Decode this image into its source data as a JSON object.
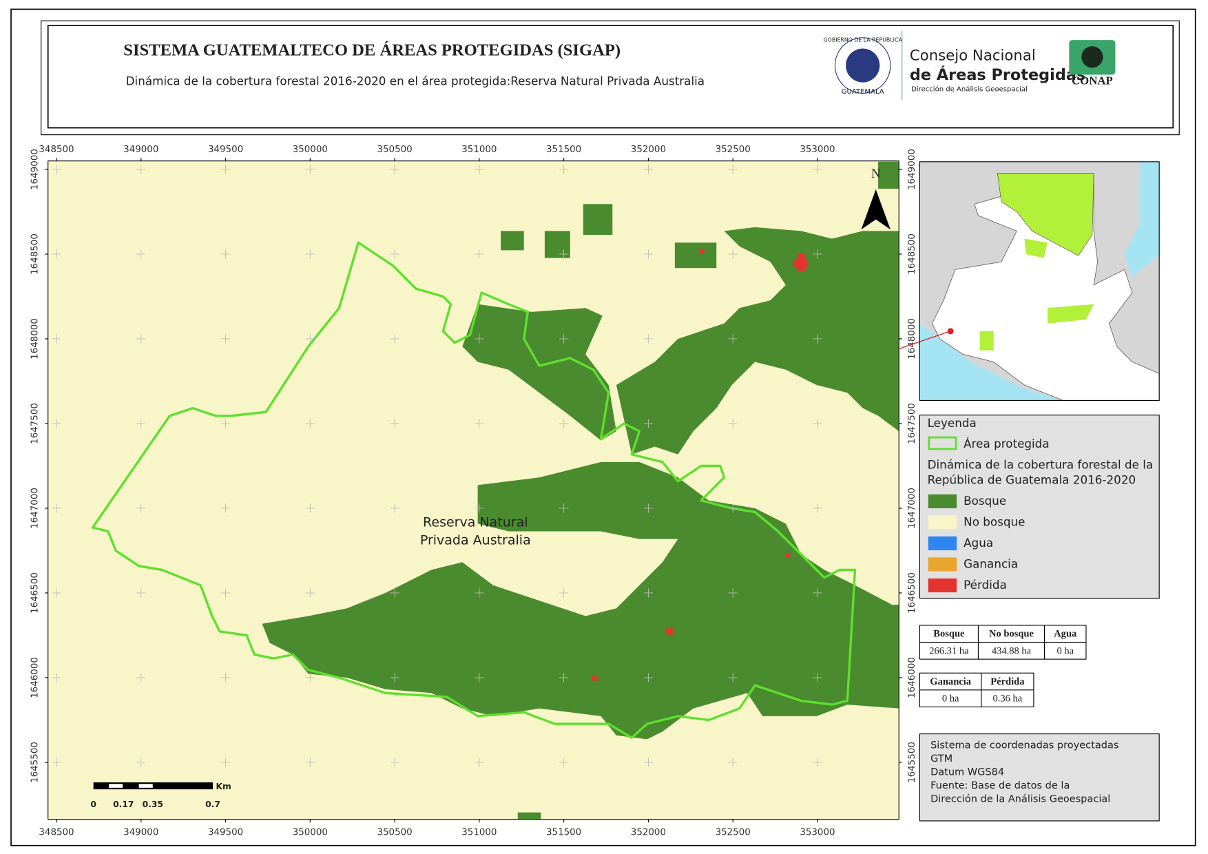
{
  "header": {
    "title": "SISTEMA GUATEMALTECO DE ÁREAS PROTEGIDAS  (SIGAP)",
    "subtitle": "Dinámica de la cobertura forestal 2016-2020 en el área protegida:Reserva Natural Privada Australia"
  },
  "logos": {
    "emblem_top": "GOBIERNO DE LA REPÚBLICA",
    "emblem_bottom": "GUATEMALA",
    "org_line1": "Consejo Nacional",
    "org_line2": "de Áreas Protegidas",
    "org_line3": "Dirección de Análisis Geoespacial",
    "conap": "CONAP"
  },
  "map": {
    "xticks": [
      348500,
      349000,
      349500,
      350000,
      350500,
      351000,
      351500,
      352000,
      352500,
      353000
    ],
    "yticks": [
      1649000,
      1648500,
      1648000,
      1647500,
      1647000,
      1646500,
      1646000,
      1645500
    ],
    "north": "N",
    "place_label": [
      "Reserva Natural",
      "Privada Australia"
    ],
    "scale_bar": {
      "unit": "Km",
      "labels": [
        0,
        0.17,
        0.35,
        0.7
      ]
    }
  },
  "legend": {
    "title": "Leyenda",
    "boundary": "Área protegida",
    "boundary_color": "#5ee02e",
    "section": [
      "Dinámica de la cobertura forestal de la",
      "República de Guatemala 2016-2020"
    ],
    "items": [
      {
        "label": "Bosque",
        "color": "#4b8b2f"
      },
      {
        "label": "No bosque",
        "color": "#f8f5c8"
      },
      {
        "label": "Agua",
        "color": "#2f86f0"
      },
      {
        "label": "Ganancia",
        "color": "#e8a52e"
      },
      {
        "label": "Pérdida",
        "color": "#e3342f"
      }
    ]
  },
  "stats": [
    {
      "headers": [
        "Bosque",
        "No bosque",
        "Agua"
      ],
      "values": [
        "266.31 ha",
        "434.88 ha",
        "0 ha"
      ]
    },
    {
      "headers": [
        "Ganancia",
        "Pérdida"
      ],
      "values": [
        "0 ha",
        "0.36 ha"
      ]
    }
  ],
  "info": [
    "Sistema de coordenadas proyectadas",
    "GTM",
    "Datum WGS84",
    "Fuente: Base de datos de la",
    "Dirección de la Análisis Geoespacial"
  ]
}
